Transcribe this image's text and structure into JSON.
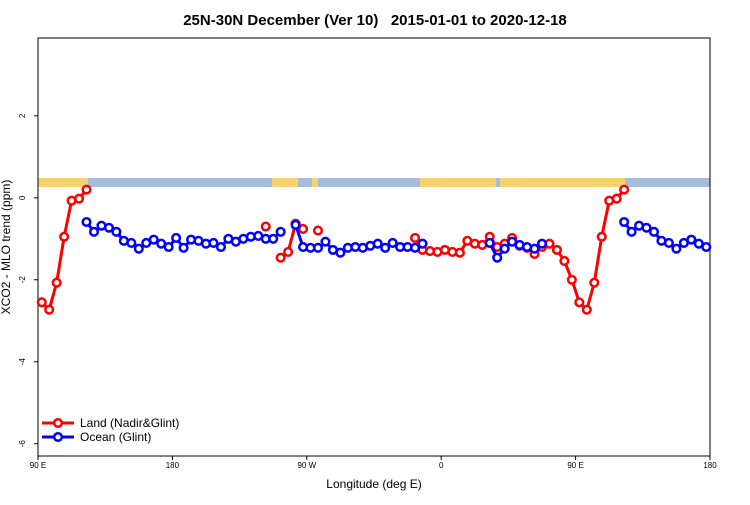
{
  "chart_data": {
    "type": "line",
    "title": "25N-30N December (Ver 10)   2015-01-01 to 2020-12-18",
    "x_label": "Longitude (deg E)",
    "y_label": "XCO2 - MLO trend (ppm)",
    "xlim": [
      90,
      540
    ],
    "ylim": [
      -6.3,
      3.9
    ],
    "xticks": [
      {
        "value": 90,
        "label": "90 E"
      },
      180,
      {
        "value": 270,
        "label": "90 W"
      },
      {
        "value": 360,
        "label": "0"
      },
      {
        "value": 450,
        "label": "90 E"
      },
      {
        "value": 540,
        "label": "180"
      }
    ],
    "yticks": [
      -6,
      -4,
      -2,
      0,
      2
    ],
    "legend": "bottom-left",
    "x": [
      92.5,
      97.5,
      102.5,
      107.5,
      112.5,
      117.5,
      122.5,
      127.5,
      132.5,
      137.5,
      142.5,
      147.5,
      152.5,
      157.5,
      162.5,
      167.5,
      172.5,
      177.5,
      182.5,
      187.5,
      192.5,
      197.5,
      202.5,
      207.5,
      212.5,
      217.5,
      222.5,
      227.5,
      232.5,
      237.5,
      242.5,
      247.5,
      252.5,
      257.5,
      262.5,
      267.5,
      272.5,
      277.5,
      282.5,
      287.5,
      292.5,
      297.5,
      302.5,
      307.5,
      312.5,
      317.5,
      322.5,
      327.5,
      332.5,
      337.5,
      342.5,
      347.5,
      352.5,
      357.5,
      362.5,
      367.5,
      372.5,
      377.5,
      382.5,
      387.5,
      392.5,
      397.5,
      402.5,
      407.5,
      412.5,
      417.5,
      422.5,
      427.5,
      432.5,
      437.5,
      442.5,
      447.5,
      452.5,
      457.5,
      462.5,
      467.5,
      472.5,
      477.5,
      482.5,
      487.5,
      492.5,
      497.5,
      502.5,
      507.5,
      512.5,
      517.5,
      522.5,
      527.5,
      532.5,
      537.5
    ],
    "series": [
      {
        "name": "Land (Nadir&Glint)",
        "color": "#ff0000",
        "values": [
          -2.55,
          -2.73,
          -2.07,
          -0.95,
          -0.07,
          -0.02,
          0.2,
          null,
          null,
          null,
          null,
          null,
          null,
          null,
          null,
          null,
          null,
          null,
          null,
          null,
          null,
          null,
          null,
          null,
          null,
          null,
          null,
          null,
          null,
          null,
          -0.7,
          null,
          -1.46,
          -1.32,
          -0.63,
          -0.76,
          null,
          -0.8,
          null,
          null,
          null,
          null,
          null,
          null,
          null,
          null,
          null,
          null,
          null,
          null,
          -0.98,
          -1.27,
          -1.3,
          -1.32,
          -1.27,
          -1.32,
          -1.34,
          -1.05,
          -1.12,
          -1.15,
          -0.95,
          -1.2,
          -1.12,
          -0.98,
          -1.17,
          -1.22,
          -1.37,
          -1.2,
          -1.12,
          -1.27,
          -1.54,
          -2.0,
          -2.55,
          -2.73,
          -2.07,
          -0.95,
          -0.07,
          -0.02,
          0.2,
          null,
          null,
          null,
          null,
          null,
          null,
          null,
          null,
          null,
          null,
          null
        ]
      },
      {
        "name": "Ocean (Glint)",
        "color": "#0000ff",
        "values": [
          null,
          null,
          null,
          null,
          null,
          null,
          -0.59,
          -0.83,
          -0.68,
          -0.73,
          -0.83,
          -1.05,
          -1.1,
          -1.24,
          -1.1,
          -1.02,
          -1.12,
          -1.2,
          -0.98,
          -1.22,
          -1.02,
          -1.05,
          -1.12,
          -1.1,
          -1.2,
          -1.0,
          -1.07,
          -1.0,
          -0.95,
          -0.93,
          -1.0,
          -1.0,
          -0.83,
          null,
          -0.66,
          -1.2,
          -1.22,
          -1.22,
          -1.07,
          -1.27,
          -1.34,
          -1.22,
          -1.2,
          -1.22,
          -1.17,
          -1.12,
          -1.22,
          -1.1,
          -1.2,
          -1.2,
          -1.22,
          -1.12,
          null,
          null,
          null,
          null,
          null,
          null,
          null,
          null,
          -1.1,
          -1.46,
          -1.24,
          -1.07,
          -1.15,
          -1.2,
          -1.24,
          -1.12,
          null,
          null,
          null,
          null,
          null,
          null,
          null,
          null,
          null,
          null,
          -0.59,
          -0.83,
          -0.68,
          -0.73,
          -0.83,
          -1.05,
          -1.1,
          -1.24,
          -1.1,
          -1.02,
          -1.12,
          -1.2
        ]
      }
    ]
  }
}
